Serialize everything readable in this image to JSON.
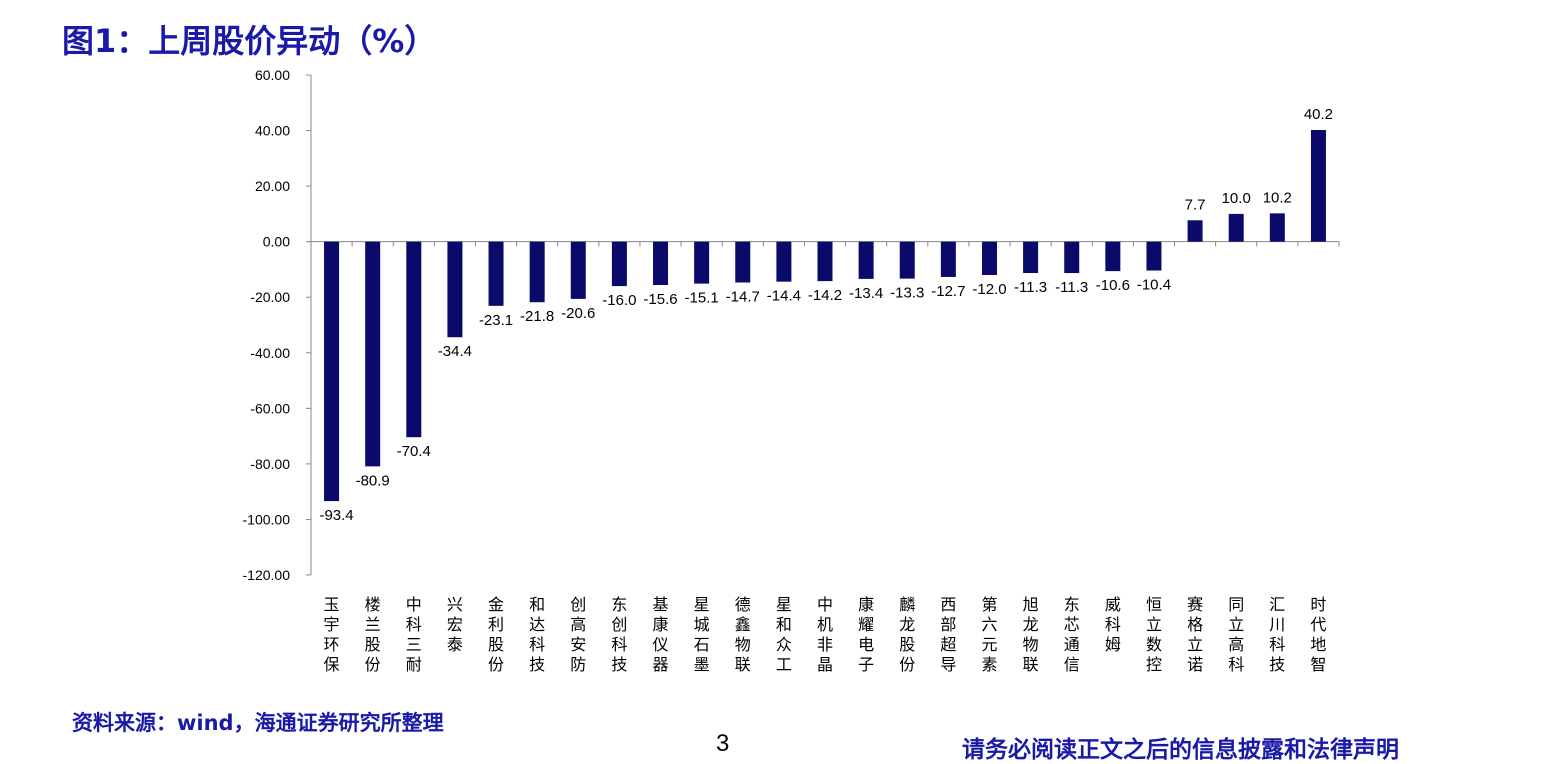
{
  "title": "图1：上周股价异动（%）",
  "source": "资料来源：wind，海通证券研究所整理",
  "page_number": "3",
  "disclaimer": "请务必阅读正文之后的信息披露和法律声明",
  "colors": {
    "bar": "#0a0a6b",
    "title": "#1a1aa8",
    "axis": "#888888"
  },
  "chart_data": {
    "type": "bar",
    "title": "",
    "xlabel": "",
    "ylabel": "",
    "ylim": [
      -120,
      60
    ],
    "yticks": [
      60,
      40,
      20,
      0,
      -20,
      -40,
      -60,
      -80,
      -100,
      -120
    ],
    "ytick_labels": [
      "60.00",
      "40.00",
      "20.00",
      "0.00",
      "-20.00",
      "-40.00",
      "-60.00",
      "-80.00",
      "-100.00",
      "-120.00"
    ],
    "grid": false,
    "categories": [
      "玉宇环保",
      "楼兰股份",
      "中科三耐",
      "兴宏泰",
      "金利股份",
      "和达科技",
      "创高安防",
      "东创科技",
      "基康仪器",
      "星城石墨",
      "德鑫物联",
      "星和众工",
      "中机非晶",
      "康耀电子",
      "麟龙股份",
      "西部超导",
      "第六元素",
      "旭龙物联",
      "东芯通信",
      "威科姆",
      "恒立数控",
      "赛格立诺",
      "同立高科",
      "汇川科技",
      "时代地智"
    ],
    "values": [
      -93.4,
      -80.9,
      -70.4,
      -34.4,
      -23.1,
      -21.8,
      -20.6,
      -16.0,
      -15.6,
      -15.1,
      -14.7,
      -14.4,
      -14.2,
      -13.4,
      -13.3,
      -12.7,
      -12.0,
      -11.3,
      -11.3,
      -10.6,
      -10.4,
      7.7,
      10.0,
      10.2,
      40.2
    ],
    "data_labels": [
      "-93.4",
      "-80.9",
      "-70.4",
      "-34.4",
      "-23.1",
      "-21.8",
      "-20.6",
      "-16.0",
      "-15.6",
      "-15.1",
      "-14.7",
      "-14.4",
      "-14.2",
      "-13.4",
      "-13.3",
      "-12.7",
      "-12.0",
      "-11.3",
      "-11.3",
      "-10.6",
      "-10.4",
      "7.7",
      "10.0",
      "10.2",
      "40.2"
    ]
  }
}
